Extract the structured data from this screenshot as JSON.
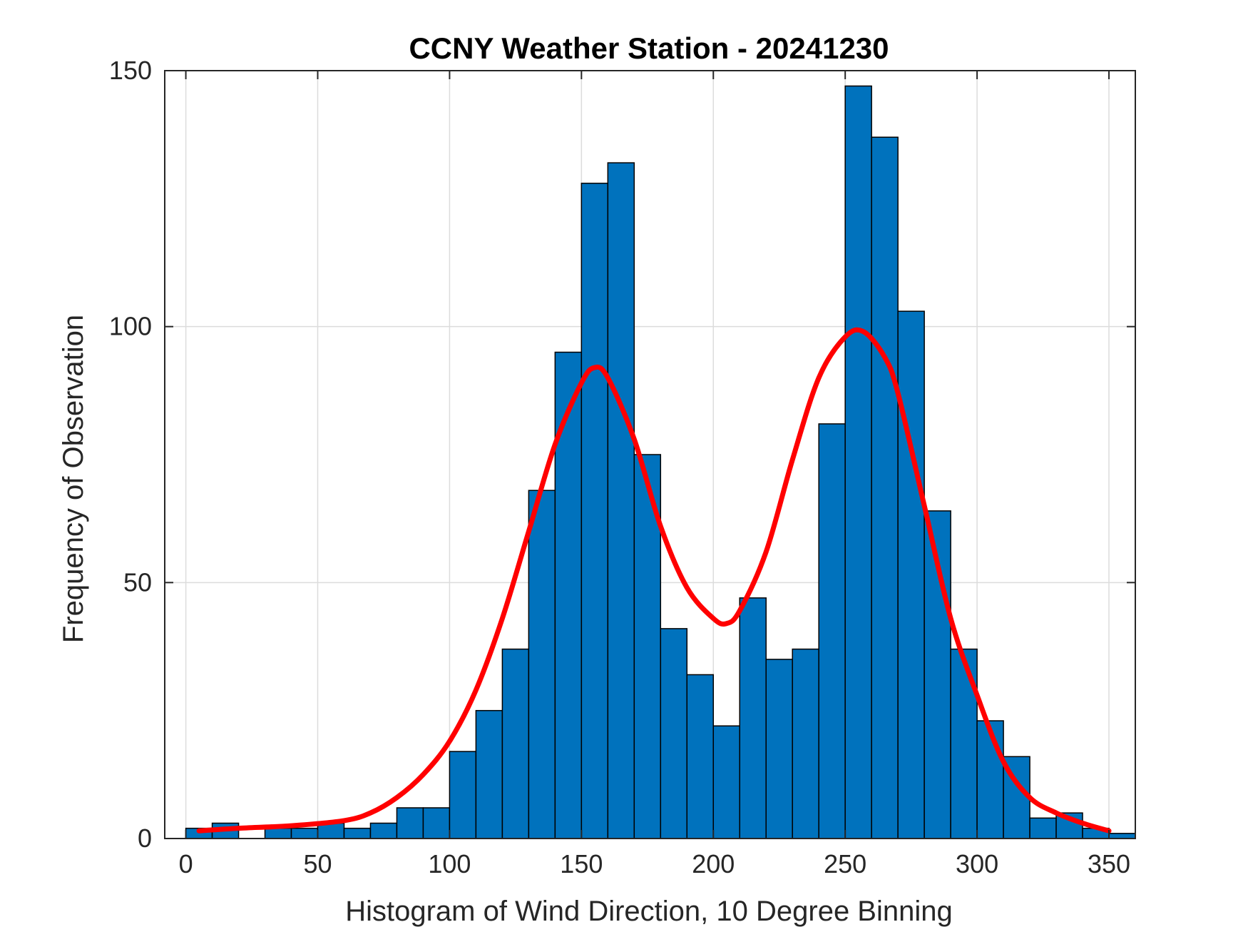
{
  "chart_data": {
    "type": "bar",
    "title": "CCNY Weather Station - 20241230",
    "xlabel": "Histogram of Wind Direction, 10 Degree Binning",
    "ylabel": "Frequency of Observation",
    "xlim": [
      -8,
      360
    ],
    "ylim": [
      0,
      150
    ],
    "xticks": [
      0,
      50,
      100,
      150,
      200,
      250,
      300,
      350
    ],
    "yticks": [
      0,
      50,
      100,
      150
    ],
    "grid": true,
    "bin_width": 10,
    "bins": {
      "starts": [
        0,
        10,
        20,
        30,
        40,
        50,
        60,
        70,
        80,
        90,
        100,
        110,
        120,
        130,
        140,
        150,
        160,
        170,
        180,
        190,
        200,
        210,
        220,
        230,
        240,
        250,
        260,
        270,
        280,
        290,
        300,
        310,
        320,
        330,
        340,
        350
      ],
      "values": [
        2,
        3,
        0,
        2,
        2,
        3,
        2,
        3,
        6,
        6,
        17,
        25,
        37,
        68,
        95,
        128,
        132,
        75,
        41,
        32,
        22,
        47,
        35,
        37,
        81,
        147,
        137,
        103,
        64,
        37,
        23,
        16,
        4,
        5,
        2,
        1
      ]
    },
    "fit_curve": {
      "x": [
        5,
        20,
        40,
        60,
        70,
        80,
        90,
        100,
        110,
        120,
        130,
        140,
        150,
        155,
        160,
        170,
        180,
        190,
        200,
        205,
        210,
        220,
        230,
        240,
        250,
        257,
        265,
        270,
        280,
        290,
        300,
        310,
        320,
        330,
        340,
        350
      ],
      "y": [
        1.5,
        2,
        2.5,
        3.5,
        5,
        8,
        12.5,
        19,
        29,
        43,
        60,
        77,
        89,
        92,
        90,
        78,
        61,
        49,
        43,
        42,
        44.5,
        56,
        74,
        90,
        98,
        99,
        94,
        87,
        65,
        43,
        28,
        15,
        8,
        5,
        3,
        1.5
      ],
      "color": "#ff0000"
    },
    "colors": {
      "bar_fill": "#0072bd",
      "bar_edge": "#000000",
      "grid": "#dcdcdc"
    }
  }
}
